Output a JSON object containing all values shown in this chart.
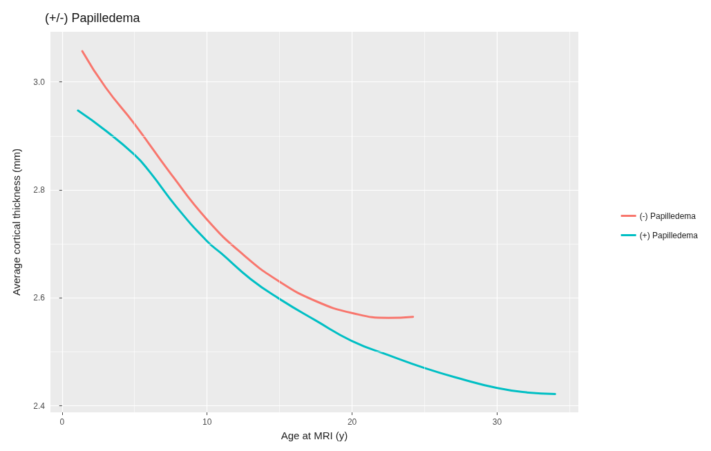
{
  "chart_data": {
    "type": "line",
    "title": "(+/-) Papilledema",
    "xlabel": "Age at MRI (y)",
    "ylabel": "Average cortical thickness (mm)",
    "series": [
      {
        "name": "(-) Papilledema",
        "color": "#f8766d",
        "x": [
          1.4,
          3,
          5,
          7.5,
          10,
          12.5,
          15,
          17.5,
          20,
          22.5,
          24.2
        ],
        "values": [
          3.057,
          2.99,
          2.922,
          2.83,
          2.745,
          2.68,
          2.63,
          2.594,
          2.572,
          2.563,
          2.565
        ]
      },
      {
        "name": "(+) Papilledema",
        "color": "#00bfc4",
        "x": [
          1.1,
          3,
          5,
          6,
          8,
          10,
          11,
          13,
          15,
          17.5,
          20,
          22.5,
          25,
          27.5,
          30,
          32,
          34
        ],
        "values": [
          2.947,
          2.91,
          2.865,
          2.835,
          2.765,
          2.705,
          2.682,
          2.635,
          2.598,
          2.558,
          2.52,
          2.494,
          2.47,
          2.45,
          2.433,
          2.425,
          2.422
        ]
      }
    ],
    "xlim": [
      -0.8,
      35.6
    ],
    "xticks": [
      0,
      {
        "value": 5,
        "label": null
      },
      10,
      {
        "value": 15,
        "label": null
      },
      20,
      {
        "value": 25,
        "label": null
      },
      30,
      {
        "value": 35,
        "label": null
      }
    ],
    "ylim": [
      2.388,
      3.093
    ],
    "yticks": [
      {
        "value": 2.4,
        "label": "2.4"
      },
      {
        "value": 2.5,
        "label": null
      },
      {
        "value": 2.6,
        "label": "2.6"
      },
      {
        "value": 2.7,
        "label": null
      },
      {
        "value": 2.8,
        "label": "2.8"
      },
      {
        "value": 2.9,
        "label": null
      },
      {
        "value": 3,
        "label": "3.0"
      }
    ],
    "grid": true,
    "legend": "right",
    "marker": "none",
    "line_style": "solid"
  }
}
